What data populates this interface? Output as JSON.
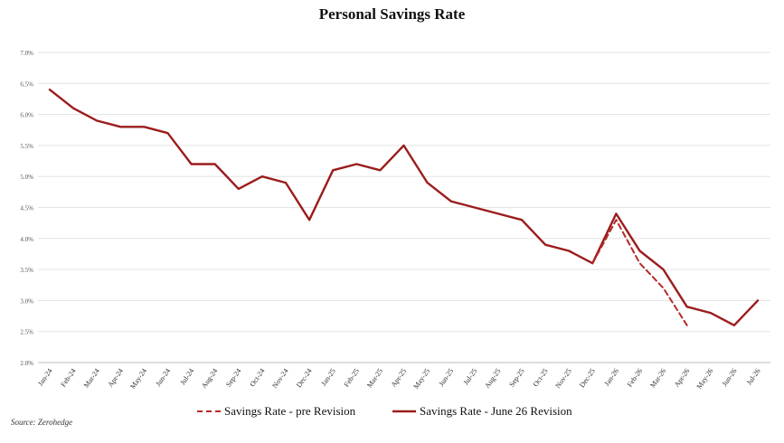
{
  "chart_data": {
    "type": "line",
    "title": "Personal Savings Rate",
    "xlabel": "",
    "ylabel": "",
    "ylim": [
      2.0,
      7.0
    ],
    "yticks": [
      "2.0%",
      "2.5%",
      "3.0%",
      "3.5%",
      "4.0%",
      "4.5%",
      "5.0%",
      "5.5%",
      "6.0%",
      "6.5%",
      "7.0%"
    ],
    "categories": [
      "Jan-24",
      "Feb-24",
      "Mar-24",
      "Apr-24",
      "May-24",
      "Jun-24",
      "Jul-24",
      "Aug-24",
      "Sep-24",
      "Oct-24",
      "Nov-24",
      "Dec-24",
      "Jan-25",
      "Feb-25",
      "Mar-25",
      "Apr-25",
      "May-25",
      "Jun-25",
      "Jul-25",
      "Aug-25",
      "Sep-25",
      "Oct-25",
      "Nov-25",
      "Dec-25",
      "Jan-26",
      "Feb-26",
      "Mar-26",
      "Apr-26",
      "May-26",
      "Jun-26",
      "Jul-26"
    ],
    "grid": true,
    "legend_position": "bottom",
    "series": [
      {
        "name": "Savings Rate - pre Revision",
        "style": "dashed",
        "color": "#b52a2a",
        "values": [
          null,
          null,
          null,
          null,
          null,
          null,
          null,
          null,
          null,
          null,
          null,
          null,
          null,
          null,
          null,
          null,
          null,
          null,
          null,
          null,
          null,
          null,
          null,
          3.6,
          4.3,
          3.6,
          3.2,
          2.6,
          null,
          null,
          null
        ]
      },
      {
        "name": "Savings Rate - June 26 Revision",
        "style": "solid",
        "color": "#9b1c1c",
        "values": [
          6.4,
          6.1,
          5.9,
          5.8,
          5.8,
          5.7,
          5.2,
          5.2,
          4.8,
          5.0,
          4.9,
          4.3,
          5.1,
          5.2,
          5.1,
          5.5,
          4.9,
          4.6,
          4.5,
          4.4,
          4.3,
          3.9,
          3.8,
          3.6,
          4.4,
          3.8,
          3.5,
          2.9,
          2.8,
          2.6,
          3.0
        ]
      }
    ]
  },
  "source": "Source: Zerohedge"
}
